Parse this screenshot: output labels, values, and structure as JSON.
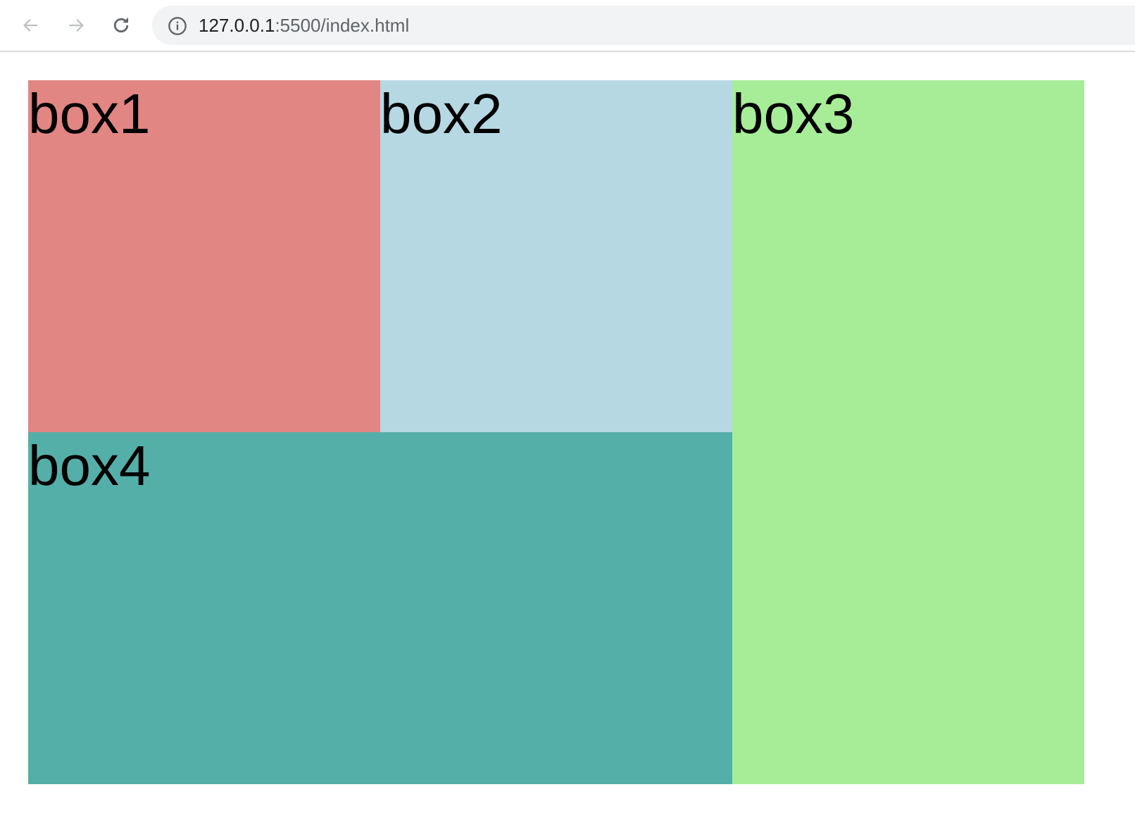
{
  "browser": {
    "url_host": "127.0.0.1",
    "url_rest": ":5500/index.html",
    "icons": [
      "back-arrow-icon",
      "forward-arrow-icon",
      "reload-icon",
      "info-icon"
    ]
  },
  "boxes": [
    {
      "label": "box1",
      "color": "#e28683"
    },
    {
      "label": "box2",
      "color": "#b6d8e3"
    },
    {
      "label": "box3",
      "color": "#a7ed98"
    },
    {
      "label": "box4",
      "color": "#54afa9"
    }
  ]
}
